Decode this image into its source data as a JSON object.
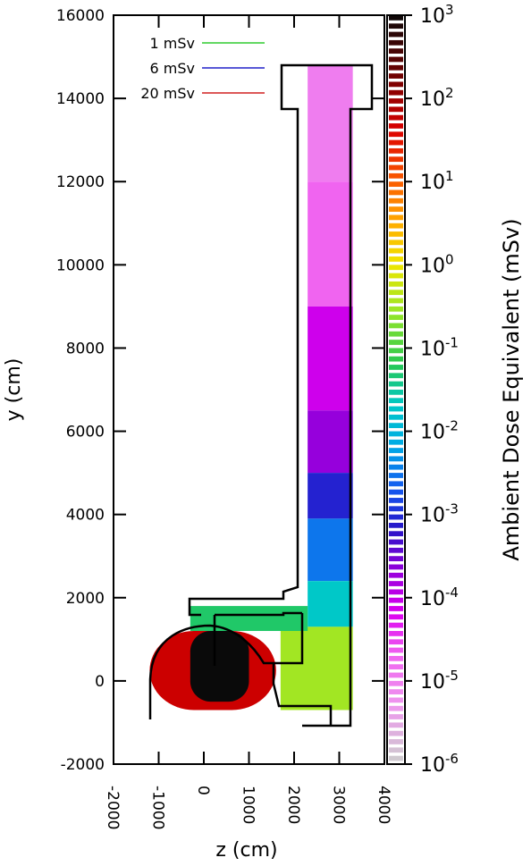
{
  "chart_data": {
    "type": "heatmap",
    "title": "",
    "xlabel": "z (cm)",
    "ylabel": "y (cm)",
    "colorbar_label": "Ambient Dose Equivalent (mSv)",
    "xlim": [
      -2000,
      4000
    ],
    "ylim": [
      -2000,
      16000
    ],
    "x_ticks": [
      "-2000",
      "-1000",
      "0",
      "1000",
      "2000",
      "3000",
      "4000"
    ],
    "y_ticks": [
      "16000",
      "14000",
      "12000",
      "10000",
      "8000",
      "6000",
      "4000",
      "2000",
      "0",
      "-2000"
    ],
    "colorbar": {
      "scale": "log",
      "range": [
        1e-06,
        1000
      ],
      "ticks": [
        {
          "base": "10",
          "exp": "3",
          "value": 1000
        },
        {
          "base": "10",
          "exp": "2",
          "value": 100
        },
        {
          "base": "10",
          "exp": "1",
          "value": 10
        },
        {
          "base": "10",
          "exp": "0",
          "value": 1
        },
        {
          "base": "10",
          "exp": "-1",
          "value": 0.1
        },
        {
          "base": "10",
          "exp": "-2",
          "value": 0.01
        },
        {
          "base": "10",
          "exp": "-3",
          "value": 0.001
        },
        {
          "base": "10",
          "exp": "-4",
          "value": 0.0001
        },
        {
          "base": "10",
          "exp": "-5",
          "value": 1e-05
        },
        {
          "base": "10",
          "exp": "-6",
          "value": 1e-06
        }
      ]
    },
    "legend": {
      "placement": "top-left",
      "entries": [
        {
          "label": "1 mSv",
          "color": "#2ecc2e",
          "level": 1
        },
        {
          "label": "6 mSv",
          "color": "#2020c8",
          "level": 6
        },
        {
          "label": "20 mSv",
          "color": "#d02020",
          "level": 20
        }
      ]
    },
    "regions": [
      {
        "name": "shaft-top",
        "z": [
          2300,
          3300
        ],
        "y": [
          12000,
          14800
        ],
        "value": 1e-05
      },
      {
        "name": "shaft-upper",
        "z": [
          2300,
          3300
        ],
        "y": [
          9000,
          12000
        ],
        "value": 2e-05
      },
      {
        "name": "shaft-mid-upper",
        "z": [
          2300,
          3300
        ],
        "y": [
          6500,
          9000
        ],
        "value": 8e-05
      },
      {
        "name": "shaft-mid",
        "z": [
          2300,
          3300
        ],
        "y": [
          5000,
          6500
        ],
        "value": 0.0002
      },
      {
        "name": "shaft-mid-lower",
        "z": [
          2300,
          3300
        ],
        "y": [
          3900,
          5000
        ],
        "value": 0.0008
      },
      {
        "name": "shaft-lower",
        "z": [
          2300,
          3300
        ],
        "y": [
          2400,
          3900
        ],
        "value": 0.003
      },
      {
        "name": "shaft-bottom",
        "z": [
          2300,
          3300
        ],
        "y": [
          1300,
          2400
        ],
        "value": 0.02
      },
      {
        "name": "floor-room",
        "z": [
          1700,
          3300
        ],
        "y": [
          -700,
          1300
        ],
        "value": 0.3
      },
      {
        "name": "tunnel",
        "z": [
          -300,
          2300
        ],
        "y": [
          1200,
          1800
        ],
        "value": 0.05
      },
      {
        "name": "source-vault",
        "z": [
          -1200,
          1600
        ],
        "y": [
          -700,
          1200
        ],
        "value": 50
      },
      {
        "name": "source-core",
        "z": [
          -300,
          1000
        ],
        "y": [
          -500,
          1200
        ],
        "value": 1000
      }
    ],
    "grid": false
  }
}
